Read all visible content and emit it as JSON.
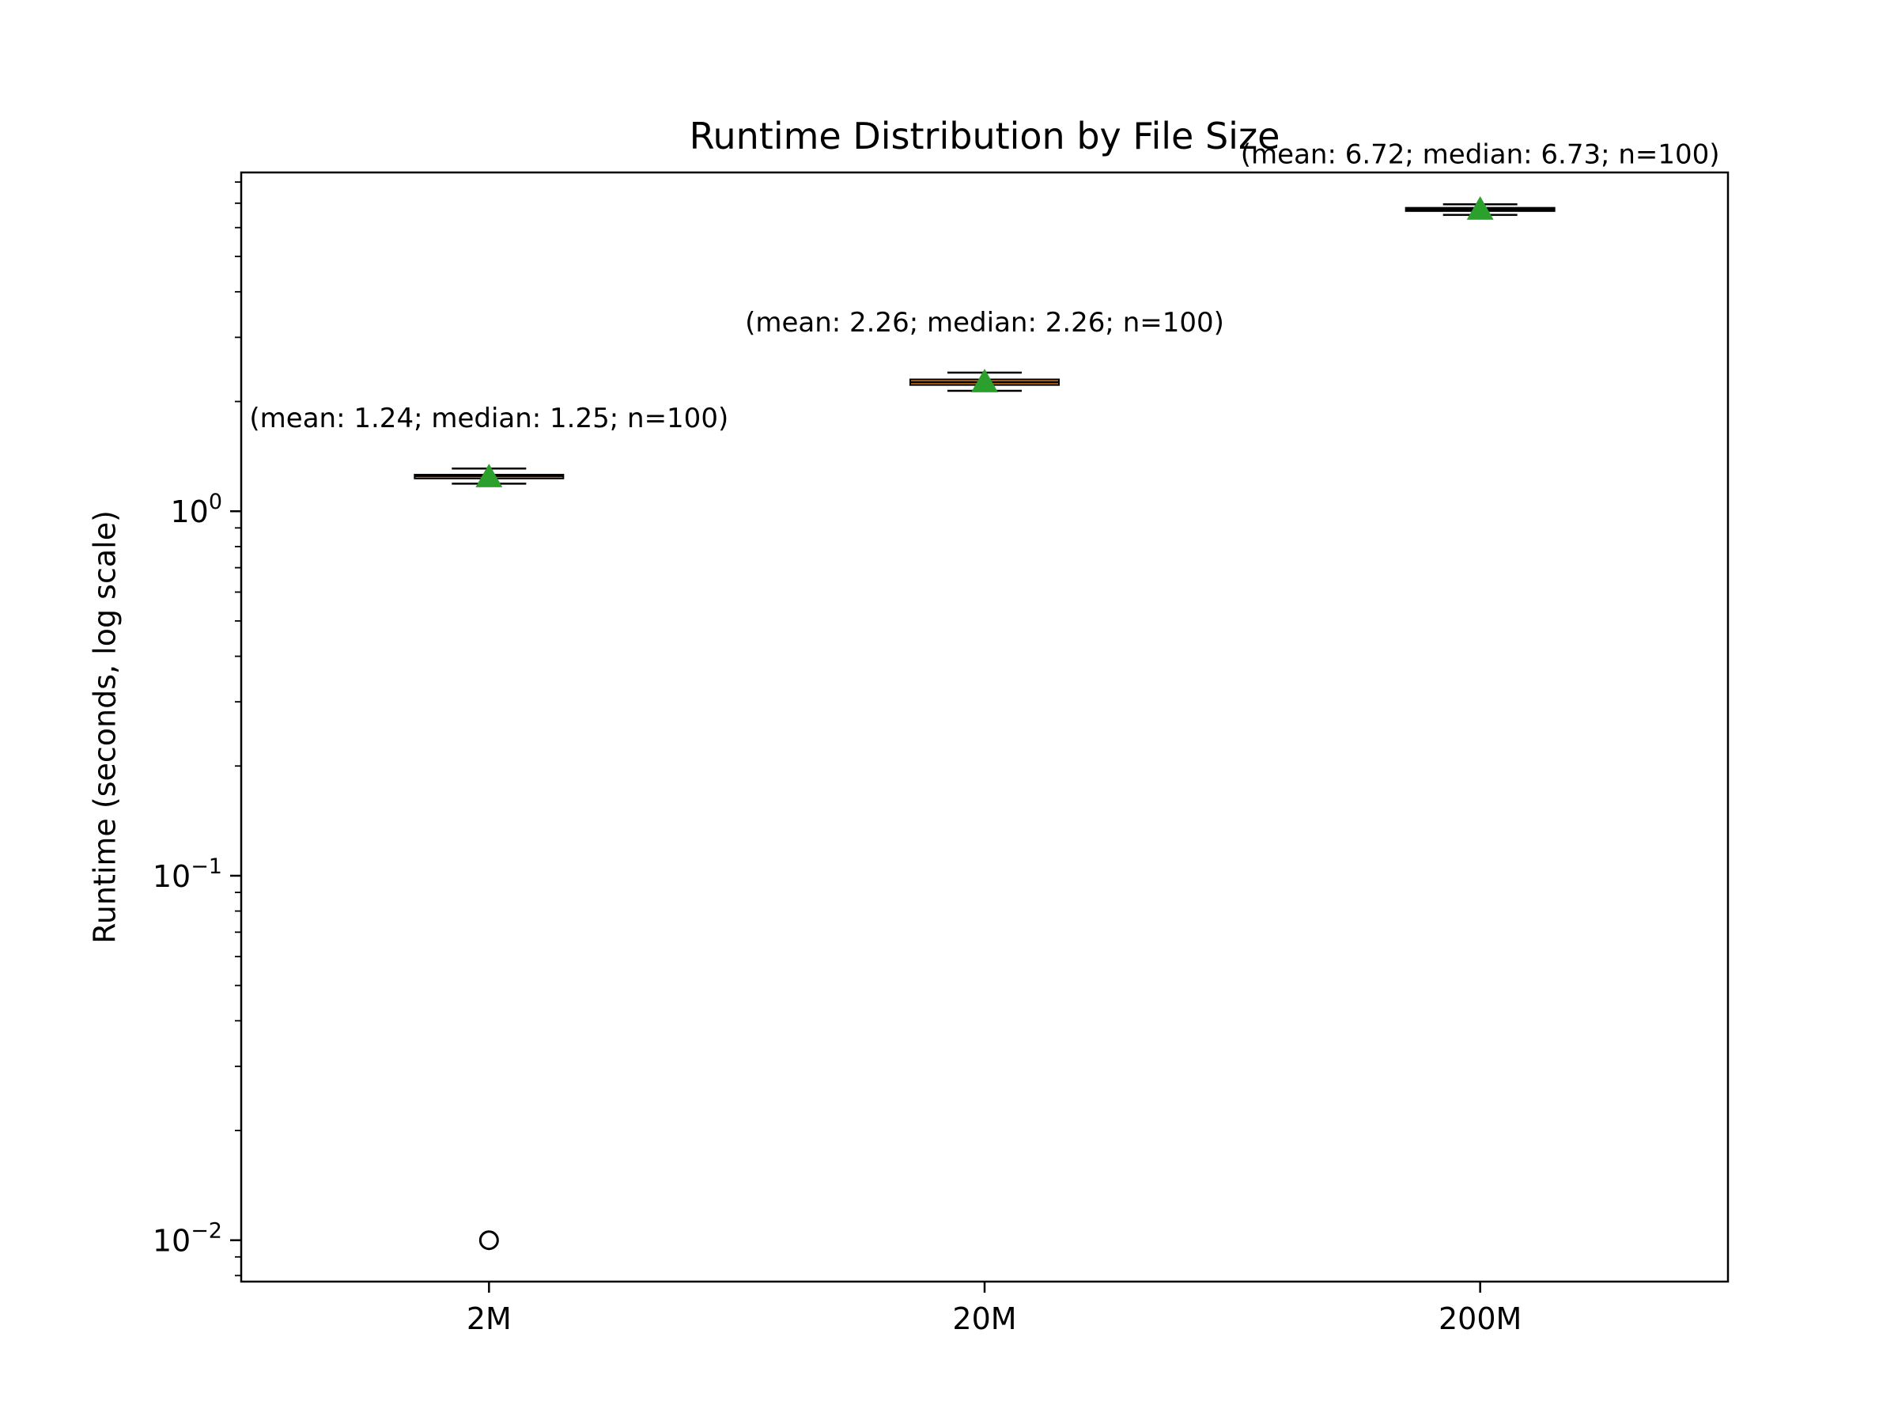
{
  "chart_data": {
    "type": "box",
    "title": "Runtime Distribution by File Size",
    "xlabel": "",
    "ylabel": "Runtime (seconds, log scale)",
    "yscale": "log",
    "ylim": [
      0.0077,
      8.5
    ],
    "yticks": [
      0.01,
      0.1,
      1
    ],
    "ytick_labels": [
      {
        "base": "10",
        "exp": "−2"
      },
      {
        "base": "10",
        "exp": "−1"
      },
      {
        "base": "10",
        "exp": "0"
      }
    ],
    "categories": [
      "2M",
      "20M",
      "200M"
    ],
    "boxes": [
      {
        "category": "2M",
        "whisker_low": 1.19,
        "q1": 1.23,
        "median": 1.25,
        "q3": 1.26,
        "whisker_high": 1.31,
        "mean": 1.24,
        "outliers": [
          0.01
        ],
        "annotation": "(mean: 1.24; median: 1.25; n=100)"
      },
      {
        "category": "20M",
        "whisker_low": 2.14,
        "q1": 2.22,
        "median": 2.26,
        "q3": 2.3,
        "whisker_high": 2.4,
        "mean": 2.26,
        "outliers": [],
        "annotation": "(mean: 2.26; median: 2.26; n=100)"
      },
      {
        "category": "200M",
        "whisker_low": 6.5,
        "q1": 6.66,
        "median": 6.73,
        "q3": 6.8,
        "whisker_high": 6.95,
        "mean": 6.72,
        "outliers": [],
        "annotation": "(mean: 6.72; median: 6.73; n=100)"
      }
    ],
    "grid": false,
    "colors": {
      "box_fill": "#ff7f0e",
      "median_line": "#000000",
      "mean_marker": "#2ca02c",
      "outlier_edge": "#000000"
    }
  }
}
